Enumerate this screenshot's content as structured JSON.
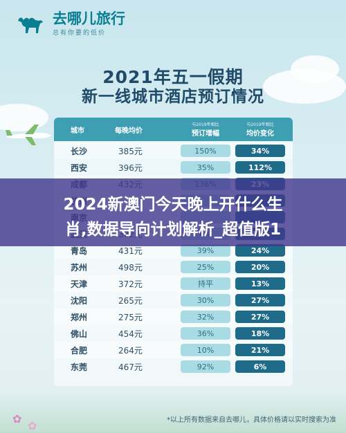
{
  "brand": {
    "name": "去哪儿旅行",
    "slogan": "总有你要的低价",
    "accent": "#0b7f92"
  },
  "title": {
    "line1": "2021年五一假期",
    "line2": "新一线城市酒店预订情况"
  },
  "table": {
    "headers": {
      "city": "城市",
      "price": "每晚均价",
      "booking_sub": "与2019年相比",
      "booking": "预订增幅",
      "avg_sub": "与2019年相比",
      "avg": "均价变化"
    },
    "rows": [
      {
        "city": "长沙",
        "price": "385元",
        "booking": "150%",
        "avg": "34%"
      },
      {
        "city": "西安",
        "price": "396元",
        "booking": "35%",
        "avg": "112%"
      },
      {
        "city": "成都",
        "price": "432元",
        "booking": "136%",
        "avg": "23%"
      },
      {
        "city": "杭州",
        "price": "",
        "booking": "",
        "avg": ""
      },
      {
        "city": "南京",
        "price": "",
        "booking": "",
        "avg": ""
      },
      {
        "city": "武汉",
        "price": "302元",
        "booking": "6%",
        "avg": "43%"
      },
      {
        "city": "青岛",
        "price": "431元",
        "booking": "39%",
        "avg": "24%"
      },
      {
        "city": "苏州",
        "price": "498元",
        "booking": "25%",
        "avg": "20%"
      },
      {
        "city": "天津",
        "price": "372元",
        "booking": "持平",
        "avg": "13%"
      },
      {
        "city": "沈阳",
        "price": "265元",
        "booking": "30%",
        "avg": "27%"
      },
      {
        "city": "郑州",
        "price": "275元",
        "booking": "32%",
        "avg": "27%"
      },
      {
        "city": "佛山",
        "price": "454元",
        "booking": "36%",
        "avg": "18%"
      },
      {
        "city": "合肥",
        "price": "264元",
        "booking": "10%",
        "avg": "21%"
      },
      {
        "city": "东莞",
        "price": "467元",
        "booking": "92%",
        "avg": "6%"
      }
    ]
  },
  "banner": {
    "line1": "2024新澳门今天晚上开什么生",
    "line2": "肖,数据导向计划解析_超值版1"
  },
  "footnote": "*以上所有数据来自去哪儿，具体价格请以实时搜索为准"
}
